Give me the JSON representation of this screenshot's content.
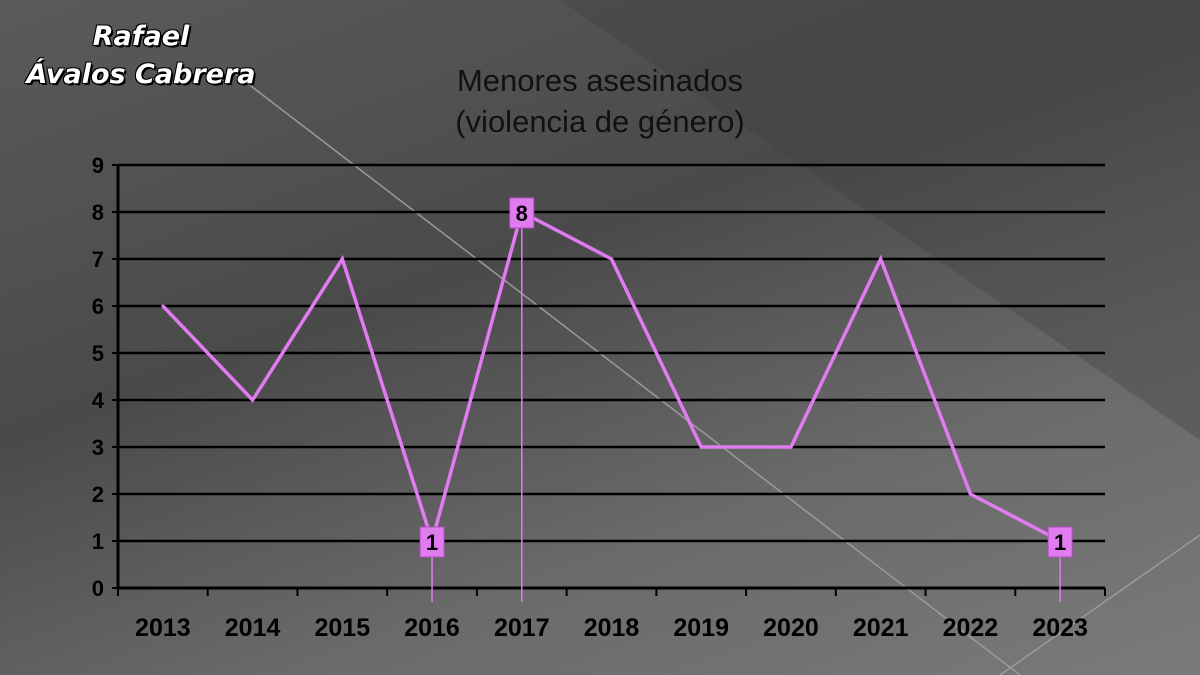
{
  "author": {
    "line1": "Rafael",
    "line2": "Ávalos Cabrera"
  },
  "chart_data": {
    "type": "line",
    "title_line1": "Menores asesinados",
    "title_line2": "(violencia de género)",
    "categories": [
      "2013",
      "2014",
      "2015",
      "2016",
      "2017",
      "2018",
      "2019",
      "2020",
      "2021",
      "2022",
      "2023"
    ],
    "series": [
      {
        "values": [
          6,
          4,
          7,
          1,
          8,
          7,
          3,
          3,
          7,
          2,
          1
        ]
      }
    ],
    "data_labels": [
      {
        "category": "2016",
        "value": 1,
        "text": "1"
      },
      {
        "category": "2017",
        "value": 8,
        "text": "8"
      },
      {
        "category": "2023",
        "value": 1,
        "text": "1"
      }
    ],
    "ylim": [
      0,
      9
    ],
    "yticks": [
      "0",
      "1",
      "2",
      "3",
      "4",
      "5",
      "6",
      "7",
      "8",
      "9"
    ],
    "grid": true,
    "line_color": "#e07cf0",
    "label_bg": "#e07cf0"
  }
}
